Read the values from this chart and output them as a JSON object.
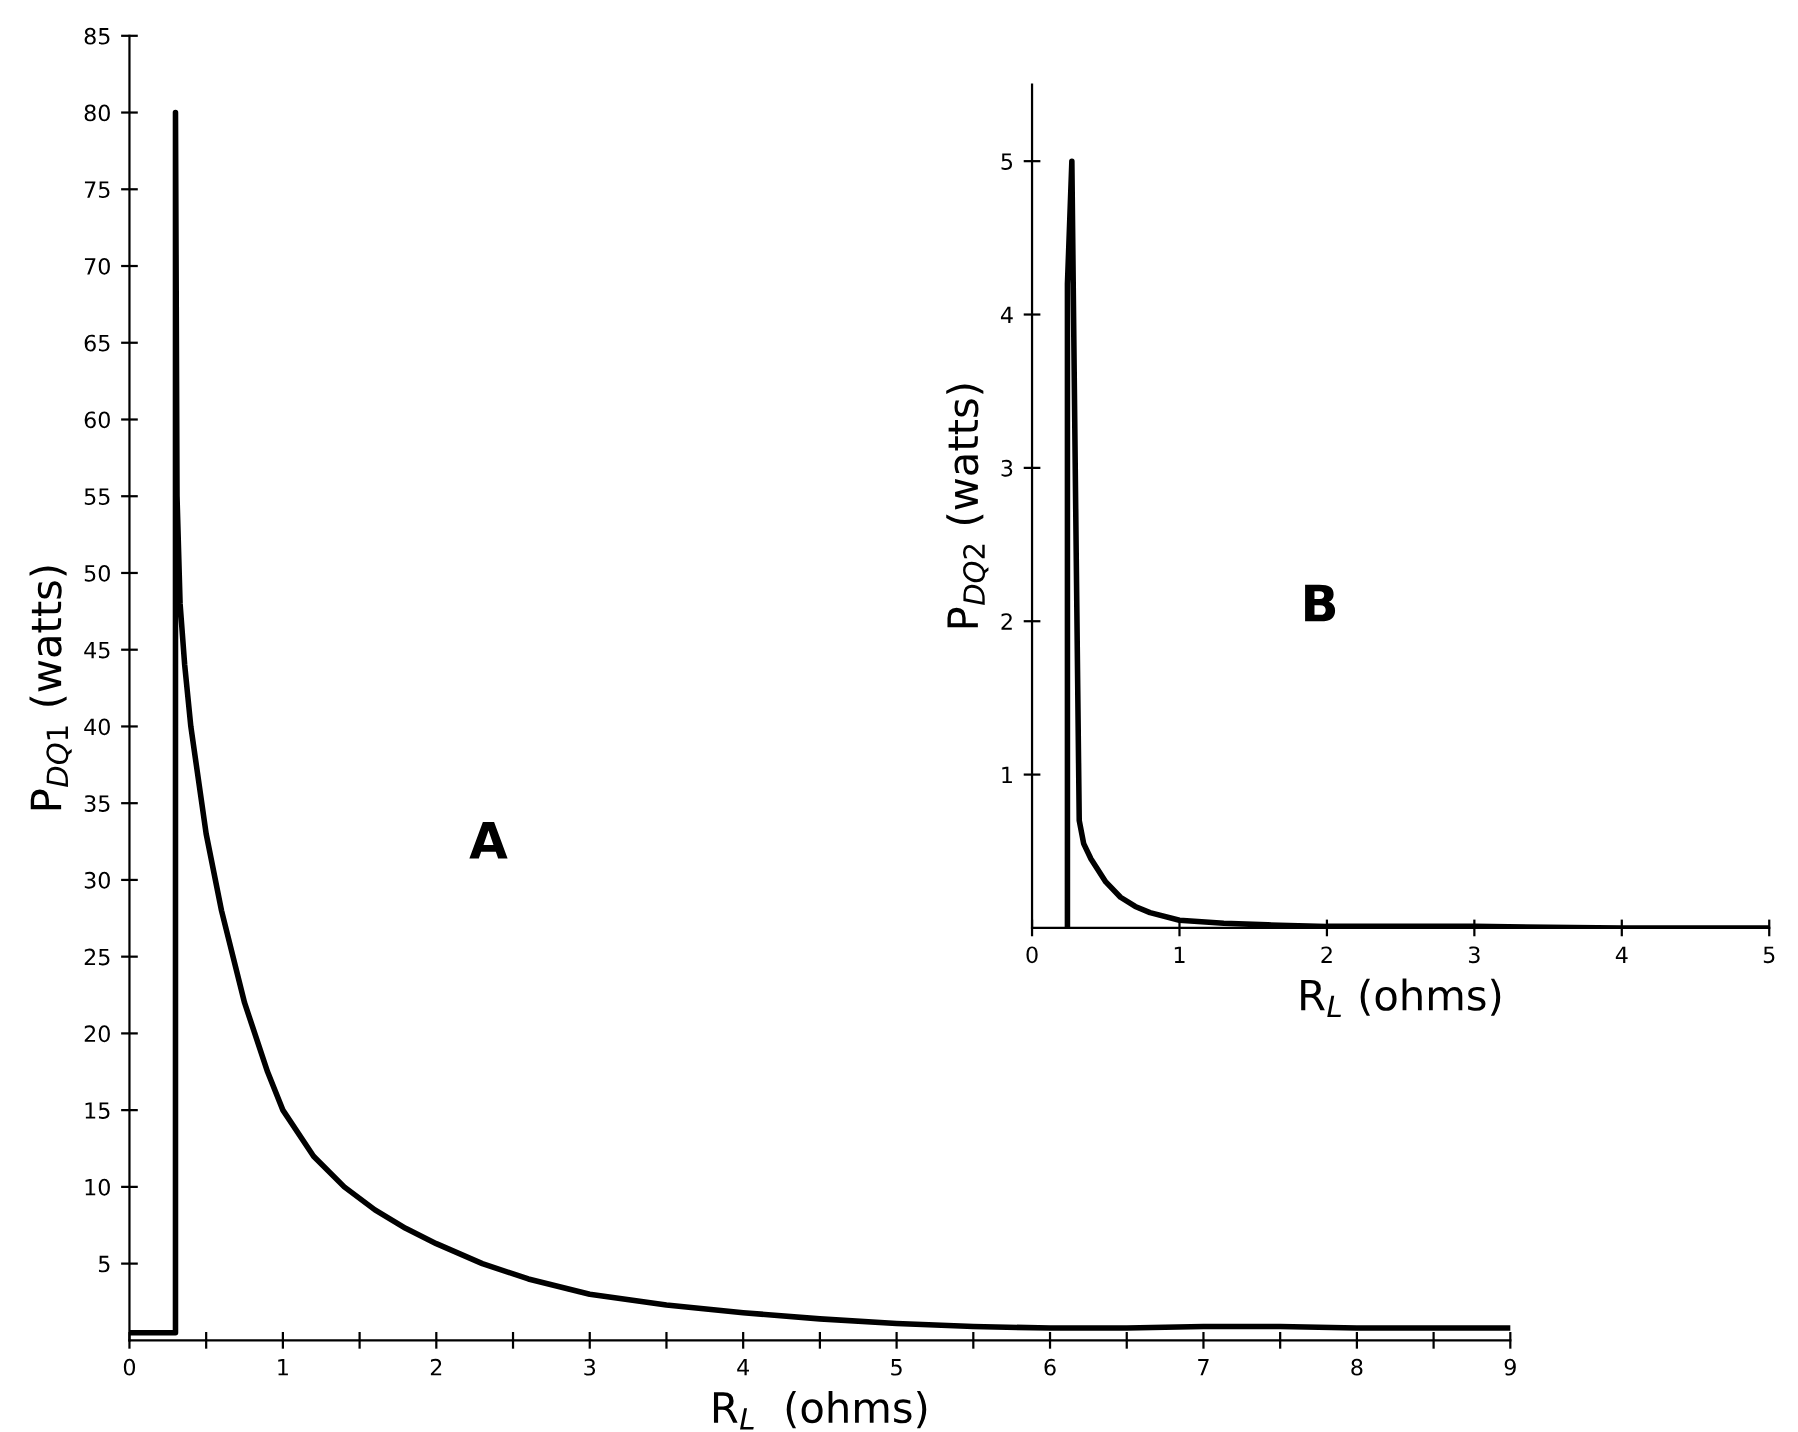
{
  "chart_data": [
    {
      "type": "line",
      "xlabel": "R$_{L}$  (ohms)",
      "ylabel": "P$_{DQ1}$ (watts)",
      "annotations": [
        "A"
      ],
      "series": [
        {
          "color": "#000000",
          "x": [
            0,
            0.3,
            0.3,
            0.31,
            0.33,
            0.36,
            0.4,
            0.5,
            0.6,
            0.75,
            0.9,
            1.0,
            1.2,
            1.4,
            1.6,
            1.8,
            2.0,
            2.3,
            2.6,
            3.0,
            3.5,
            4.0,
            4.5,
            5.0,
            5.5,
            6.0,
            6.5,
            7.0,
            7.5,
            8.0,
            9.0
          ],
          "values": [
            0.5,
            0.5,
            80,
            55,
            48,
            44,
            40,
            33,
            28,
            22,
            17.5,
            15,
            12,
            10,
            8.5,
            7.3,
            6.3,
            5,
            4,
            3,
            2.3,
            1.8,
            1.4,
            1.1,
            0.9,
            0.8,
            0.8,
            0.9,
            0.9,
            0.8,
            0.8
          ]
        }
      ],
      "xlim": [
        0,
        9
      ],
      "ylim": [
        0,
        85
      ],
      "xticks": [
        0,
        {
          "value": 0.5,
          "label": null
        },
        1,
        {
          "value": 1.5,
          "label": null
        },
        2,
        {
          "value": 2.5,
          "label": null
        },
        3,
        {
          "value": 3.5,
          "label": null
        },
        4,
        {
          "value": 4.5,
          "label": null
        },
        5,
        {
          "value": 5.5,
          "label": null
        },
        6,
        {
          "value": 6.5,
          "label": null
        },
        7,
        {
          "value": 7.5,
          "label": null
        },
        8,
        {
          "value": 8.5,
          "label": null
        },
        9
      ],
      "yticks": [
        5,
        10,
        15,
        20,
        25,
        30,
        35,
        40,
        45,
        50,
        55,
        60,
        65,
        70,
        75,
        80,
        85
      ],
      "grid": false,
      "marker": "none",
      "line_style": "solid"
    },
    {
      "type": "line",
      "xlabel": "R$_{L}$ (ohms)",
      "ylabel": "P$_{DQ2}$ (watts)",
      "annotations": [
        "B"
      ],
      "series": [
        {
          "color": "#000000",
          "x": [
            0.24,
            0.24,
            0.27,
            0.3,
            0.32,
            0.35,
            0.4,
            0.5,
            0.6,
            0.7,
            0.8,
            1.0,
            1.3,
            1.6,
            2.0,
            3.0,
            4.0,
            5.0
          ],
          "values": [
            0,
            4.2,
            5,
            2.4,
            0.7,
            0.55,
            0.45,
            0.3,
            0.2,
            0.14,
            0.1,
            0.05,
            0.03,
            0.02,
            0.01,
            0.01,
            0,
            0
          ]
        }
      ],
      "xlim": [
        0,
        5
      ],
      "ylim": [
        0,
        5.5
      ],
      "xticks": [
        0,
        1,
        2,
        3,
        4,
        5
      ],
      "yticks": [
        1,
        2,
        3,
        4,
        5
      ],
      "grid": false,
      "marker": "none",
      "line_style": "solid"
    }
  ]
}
